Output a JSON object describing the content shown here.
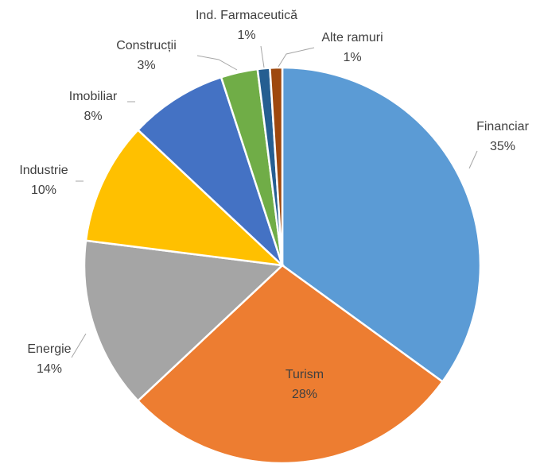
{
  "chart_data": {
    "type": "pie",
    "categories": [
      "Financiar",
      "Turism",
      "Energie",
      "Industrie",
      "Imobiliar",
      "Construcții",
      "Ind. Farmaceutică",
      "Alte ramuri"
    ],
    "values": [
      35,
      28,
      14,
      10,
      8,
      3,
      1,
      1
    ],
    "value_labels": [
      "35%",
      "28%",
      "14%",
      "10%",
      "8%",
      "3%",
      "1%",
      "1%"
    ],
    "colors": [
      "#5b9bd5",
      "#ed7d31",
      "#a5a5a5",
      "#ffc000",
      "#4472c4",
      "#70ad47",
      "#255e91",
      "#9e480e"
    ]
  }
}
